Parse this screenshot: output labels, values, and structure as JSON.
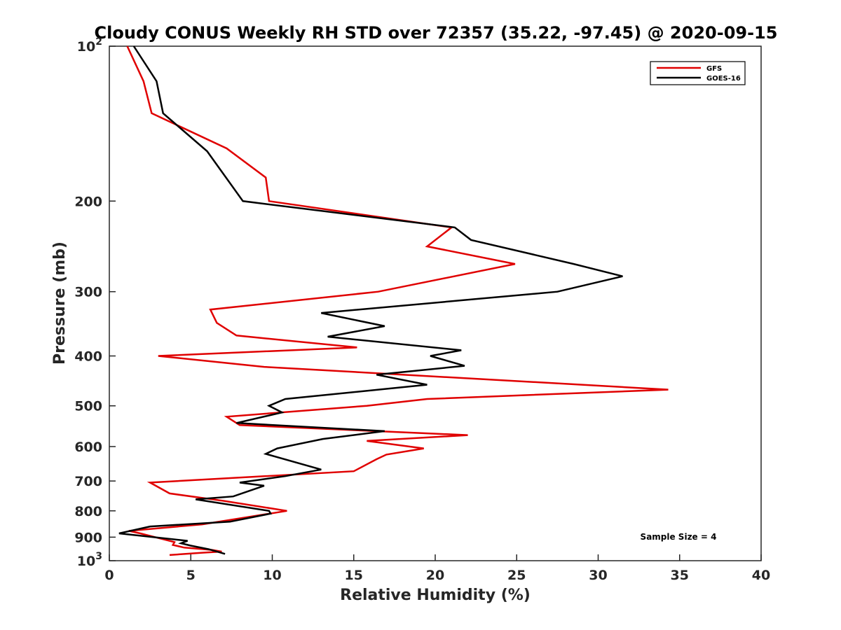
{
  "chart_data": {
    "type": "line",
    "title": "Cloudy CONUS Weekly RH STD over 72357 (35.22, -97.45) @ 2020-09-15",
    "xlabel": "Relative Humidity (%)",
    "ylabel": "Pressure (mb)",
    "xlim": [
      0,
      40
    ],
    "ylim": [
      100,
      1000
    ],
    "y_scale": "log",
    "y_reversed": true,
    "grid": false,
    "legend_position": "top-right",
    "x_ticks": [
      0,
      5,
      10,
      15,
      20,
      25,
      30,
      35,
      40
    ],
    "x_tick_labels": [
      "0",
      "5",
      "10",
      "15",
      "20",
      "25",
      "30",
      "35",
      "40"
    ],
    "y_ticks": [
      100,
      200,
      300,
      400,
      500,
      600,
      700,
      800,
      900,
      1000
    ],
    "y_tick_labels": [
      "10^2",
      "200",
      "300",
      "400",
      "500",
      "600",
      "700",
      "800",
      "900",
      "10^3"
    ],
    "annotation": "Sample Size = 4",
    "series": [
      {
        "name": "GFS",
        "color": "#e00000",
        "points": [
          [
            1.1,
            100
          ],
          [
            2.1,
            117
          ],
          [
            2.6,
            135
          ],
          [
            7.2,
            158
          ],
          [
            9.6,
            180
          ],
          [
            9.8,
            200
          ],
          [
            21.0,
            225
          ],
          [
            19.5,
            245
          ],
          [
            24.9,
            265
          ],
          [
            16.5,
            300
          ],
          [
            6.2,
            325
          ],
          [
            6.6,
            345
          ],
          [
            7.8,
            365
          ],
          [
            15.2,
            385
          ],
          [
            3.0,
            400
          ],
          [
            9.5,
            420
          ],
          [
            34.3,
            465
          ],
          [
            19.5,
            485
          ],
          [
            15.8,
            500
          ],
          [
            7.2,
            525
          ],
          [
            8.0,
            545
          ],
          [
            22.0,
            570
          ],
          [
            15.8,
            585
          ],
          [
            19.3,
            605
          ],
          [
            17.0,
            622
          ],
          [
            16.4,
            635
          ],
          [
            15.0,
            670
          ],
          [
            2.5,
            705
          ],
          [
            3.7,
            740
          ],
          [
            7.0,
            765
          ],
          [
            10.9,
            800
          ],
          [
            5.7,
            850
          ],
          [
            1.2,
            875
          ],
          [
            1.9,
            885
          ],
          [
            4.0,
            920
          ],
          [
            3.9,
            932
          ],
          [
            4.6,
            943
          ],
          [
            6.3,
            953
          ],
          [
            6.9,
            960
          ],
          [
            5.7,
            965
          ],
          [
            3.7,
            975
          ]
        ]
      },
      {
        "name": "GOES-16",
        "color": "#000000",
        "points": [
          [
            1.5,
            100
          ],
          [
            2.9,
            117
          ],
          [
            3.3,
            135
          ],
          [
            6.0,
            160
          ],
          [
            8.2,
            200
          ],
          [
            21.2,
            225
          ],
          [
            22.2,
            238
          ],
          [
            28.5,
            265
          ],
          [
            31.5,
            280
          ],
          [
            27.5,
            300
          ],
          [
            13.0,
            330
          ],
          [
            16.9,
            350
          ],
          [
            13.4,
            367
          ],
          [
            21.6,
            390
          ],
          [
            19.7,
            400
          ],
          [
            21.8,
            418
          ],
          [
            16.4,
            435
          ],
          [
            19.5,
            455
          ],
          [
            10.8,
            485
          ],
          [
            9.8,
            500
          ],
          [
            10.6,
            515
          ],
          [
            7.8,
            540
          ],
          [
            16.9,
            560
          ],
          [
            13.1,
            580
          ],
          [
            10.3,
            605
          ],
          [
            9.6,
            620
          ],
          [
            13.0,
            665
          ],
          [
            10.8,
            685
          ],
          [
            8.0,
            705
          ],
          [
            9.5,
            715
          ],
          [
            7.6,
            750
          ],
          [
            5.3,
            760
          ],
          [
            9.8,
            800
          ],
          [
            9.9,
            810
          ],
          [
            7.4,
            840
          ],
          [
            2.5,
            858
          ],
          [
            0.6,
            885
          ],
          [
            4.8,
            915
          ],
          [
            4.4,
            925
          ],
          [
            5.0,
            935
          ],
          [
            6.1,
            950
          ],
          [
            7.1,
            970
          ]
        ]
      }
    ]
  }
}
